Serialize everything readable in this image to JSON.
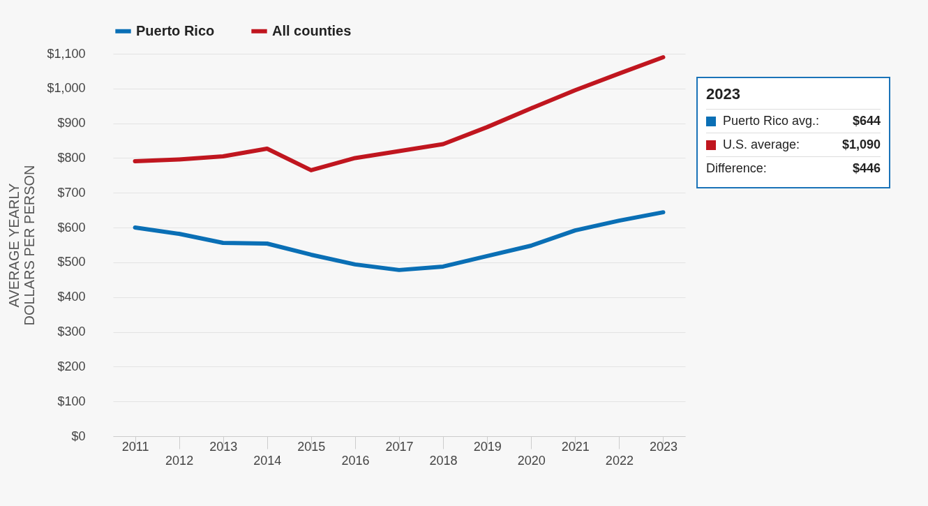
{
  "chart_data": {
    "type": "line",
    "ylabel": "AVERAGE YEARLY\nDOLLARS PER PERSON",
    "categories": [
      "2011",
      "2012",
      "2013",
      "2014",
      "2015",
      "2016",
      "2017",
      "2018",
      "2019",
      "2020",
      "2021",
      "2022",
      "2023"
    ],
    "series": [
      {
        "name": "Puerto Rico",
        "color": "#0a6fb5",
        "values": [
          600,
          582,
          556,
          554,
          522,
          494,
          478,
          488,
          518,
          548,
          592,
          620,
          644
        ]
      },
      {
        "name": "All counties",
        "color": "#c0161f",
        "values": [
          791,
          796,
          805,
          827,
          765,
          800,
          820,
          840,
          889,
          943,
          995,
          1043,
          1090
        ]
      }
    ],
    "ylim": [
      0,
      1100
    ],
    "yticks": [
      {
        "value": 0,
        "label": "$0"
      },
      {
        "value": 100,
        "label": "$100"
      },
      {
        "value": 200,
        "label": "$200"
      },
      {
        "value": 300,
        "label": "$300"
      },
      {
        "value": 400,
        "label": "$400"
      },
      {
        "value": 500,
        "label": "$500"
      },
      {
        "value": 600,
        "label": "$600"
      },
      {
        "value": 700,
        "label": "$700"
      },
      {
        "value": 800,
        "label": "$800"
      },
      {
        "value": 900,
        "label": "$900"
      },
      {
        "value": 1000,
        "label": "$1,000"
      },
      {
        "value": 1100,
        "label": "$1,100"
      }
    ],
    "grid": "y",
    "legend": "top",
    "line_style": "solid",
    "annotations": [
      "2023",
      "Puerto Rico avg.: $644",
      "U.S. average: $1,090",
      "Difference: $446"
    ]
  }
}
